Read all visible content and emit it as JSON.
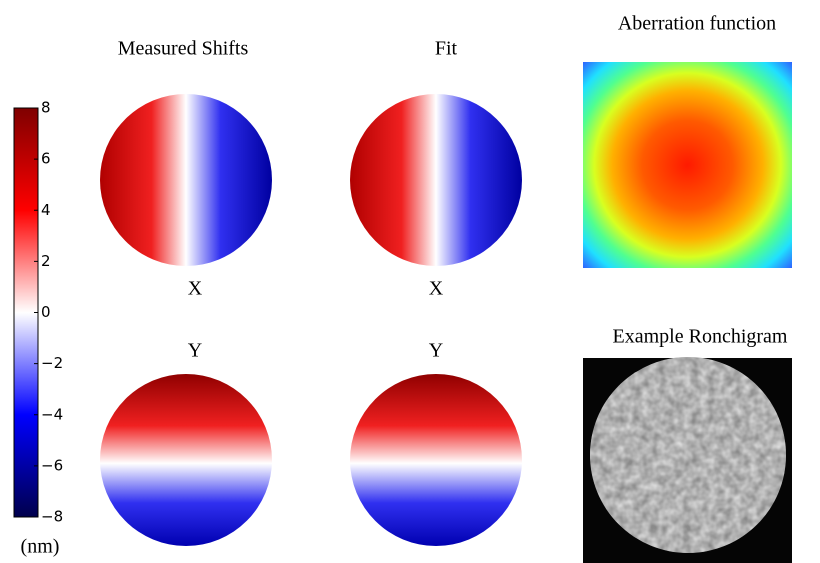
{
  "titles": {
    "measured": "Measured Shifts",
    "fit": "Fit",
    "x_measured": "X",
    "x_fit": "X",
    "y_measured": "Y",
    "y_fit": "Y",
    "aberration": "Aberration function",
    "ronchigram": "Example Ronchigram"
  },
  "colorbar": {
    "range": [
      -8,
      8
    ],
    "ticks": [
      8,
      6,
      4,
      2,
      {
        "value": 0,
        "label": "0"
      },
      {
        "value": -2,
        "label": "−2"
      },
      {
        "value": -4,
        "label": "−4"
      },
      {
        "value": -6,
        "label": "−6"
      },
      {
        "value": -8,
        "label": "−8"
      }
    ],
    "unit": "(nm)"
  }
}
